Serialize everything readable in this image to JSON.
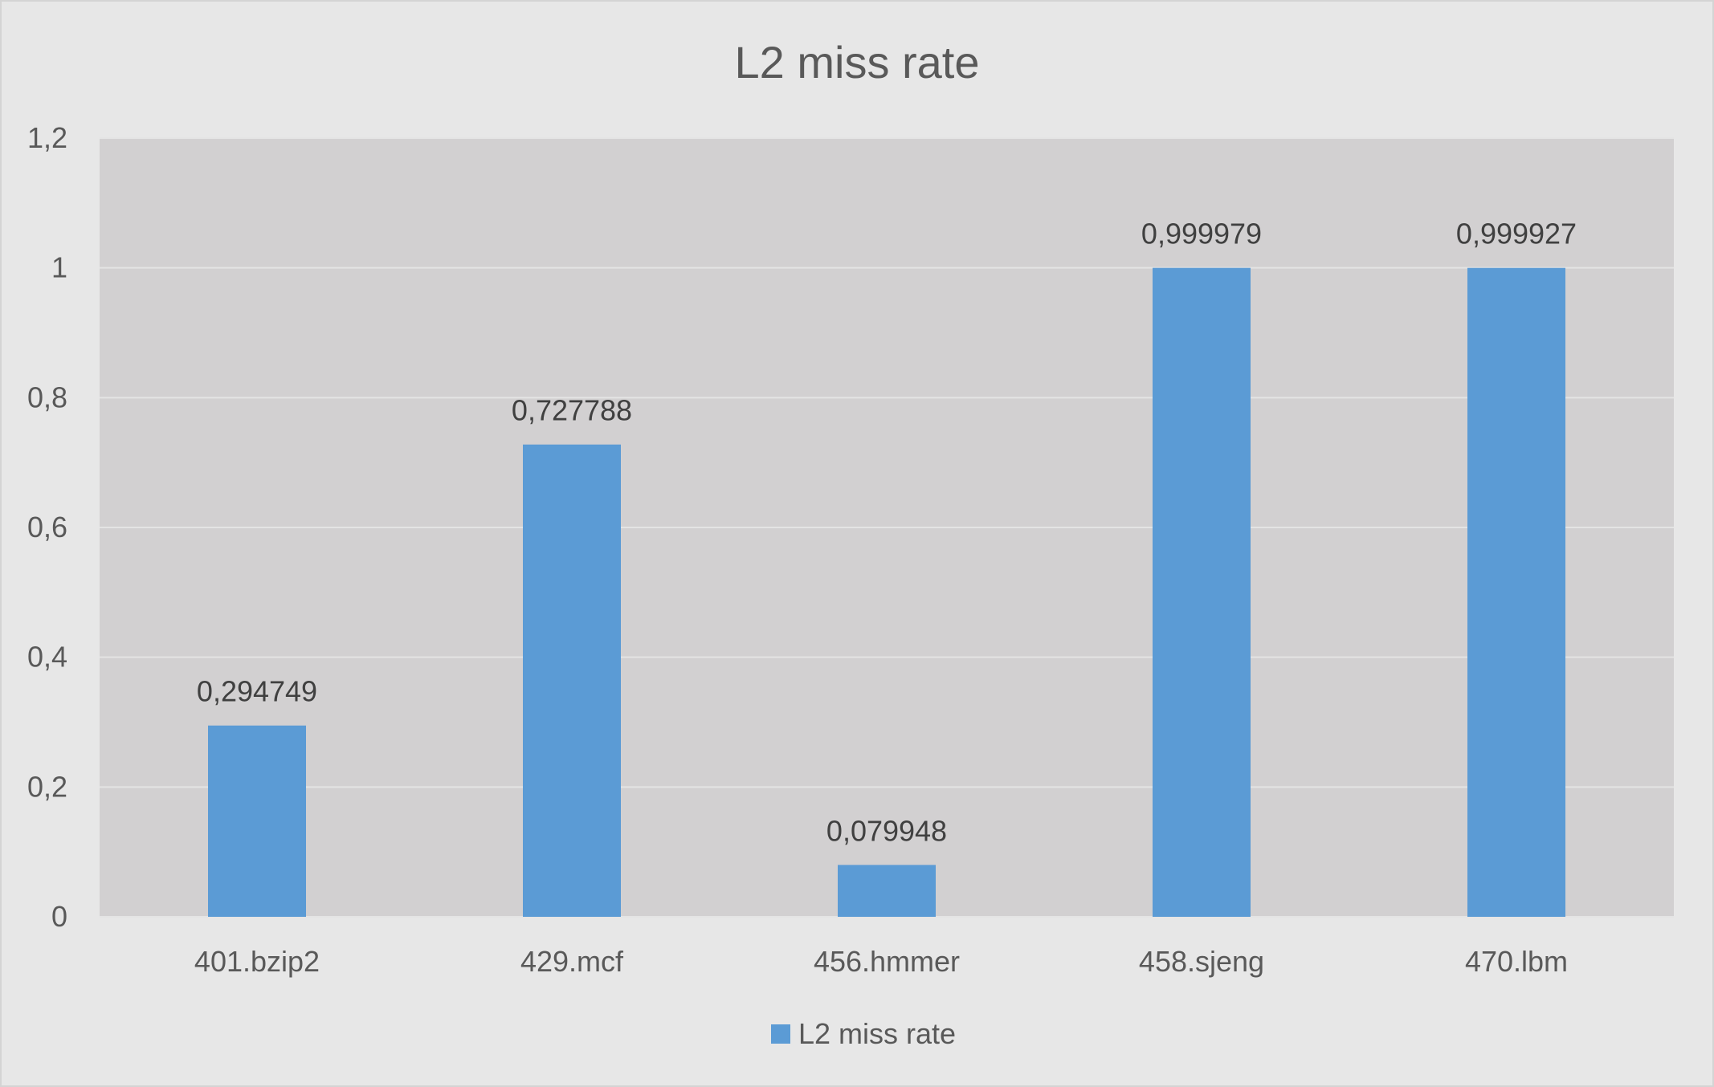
{
  "chart_data": {
    "type": "bar",
    "title": "L2 miss rate",
    "xlabel": "",
    "ylabel": "",
    "categories": [
      "401.bzip2",
      "429.mcf",
      "456.hmmer",
      "458.sjeng",
      "470.lbm"
    ],
    "series": [
      {
        "name": "L2 miss rate",
        "values": [
          0.294749,
          0.727788,
          0.079948,
          0.999979,
          0.999927
        ],
        "labels": [
          "0,294749",
          "0,727788",
          "0,079948",
          "0,999979",
          "0,999927"
        ],
        "color": "#5b9bd5"
      }
    ],
    "ylim": [
      0,
      1.2
    ],
    "yticks": [
      0,
      0.2,
      0.4,
      0.6,
      0.8,
      1,
      1.2
    ],
    "ytick_labels": [
      "0",
      "0,2",
      "0,4",
      "0,6",
      "0,8",
      "1",
      "1,2"
    ],
    "grid": true,
    "legend": "bottom",
    "colors": {
      "background": "#e7e7e7",
      "plot_area": "#d2d0d1",
      "gridline": "#e4e4e4",
      "bar": "#5b9bd5"
    }
  }
}
